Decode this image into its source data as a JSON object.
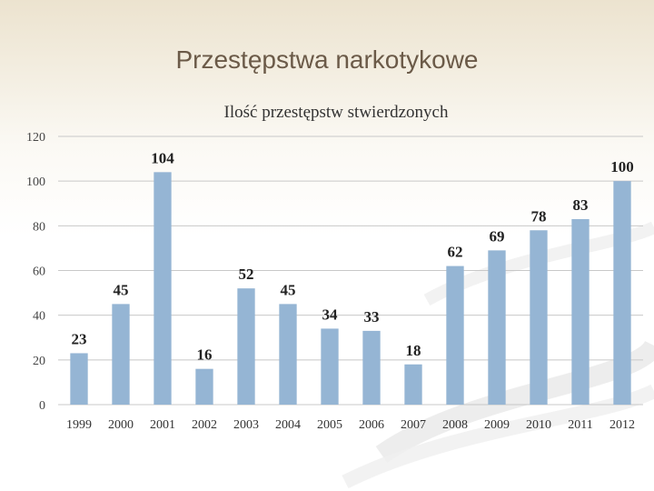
{
  "slide": {
    "title": "Przestępstwa narkotykowe"
  },
  "colors": {
    "bar": "#95b5d4",
    "grid": "#c8c8c8",
    "title": "#6b5a48"
  },
  "chart_data": {
    "type": "bar",
    "title": "Ilość przestępstw stwierdzonych",
    "categories": [
      "1999",
      "2000",
      "2001",
      "2002",
      "2003",
      "2004",
      "2005",
      "2006",
      "2007",
      "2008",
      "2009",
      "2010",
      "2011",
      "2012"
    ],
    "values": [
      23,
      45,
      104,
      16,
      52,
      45,
      34,
      33,
      18,
      62,
      69,
      78,
      83,
      100
    ],
    "ylim": [
      0,
      120
    ],
    "yticks": [
      0,
      20,
      40,
      60,
      80,
      100,
      120
    ],
    "grid": true,
    "legend": "none"
  }
}
